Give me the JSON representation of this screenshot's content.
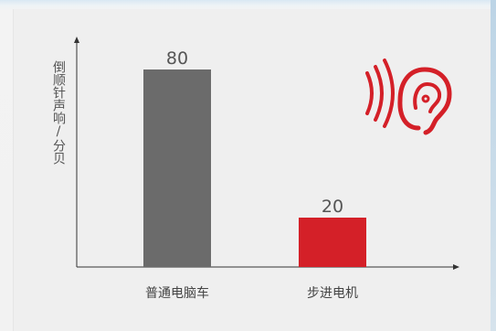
{
  "chart_data": {
    "type": "bar",
    "categories": [
      "普通电脑车",
      "步进电机"
    ],
    "values": [
      80,
      20
    ],
    "ylabel": "倒顺针声响/分贝",
    "xlabel": "",
    "ylim": [
      0,
      100
    ],
    "grid": false,
    "legend": "none",
    "colors": [
      "#6b6b6b",
      "#d42028"
    ],
    "value_label_color": "#555555",
    "axis_color": "#333333"
  },
  "decoration": {
    "icon": "ear-sound-waves-icon",
    "icon_color": "#d42028"
  }
}
